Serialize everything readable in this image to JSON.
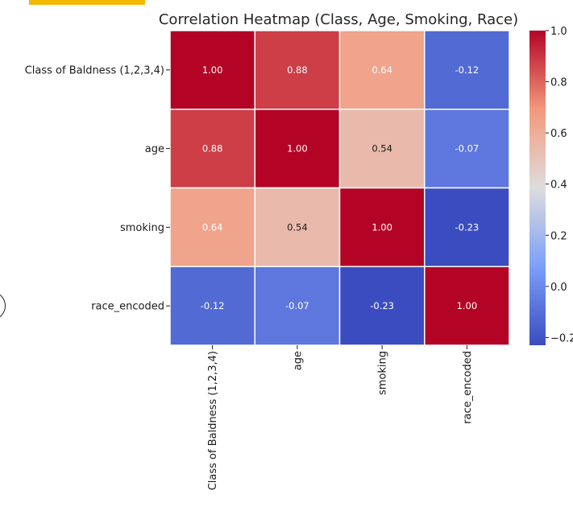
{
  "chart_data": {
    "type": "heatmap",
    "title": "Correlation Heatmap (Class, Age, Smoking, Race)",
    "row_labels": [
      "Class of Baldness (1,2,3,4)",
      "age",
      "smoking",
      "race_encoded"
    ],
    "col_labels": [
      "Class of Baldness (1,2,3,4)",
      "age",
      "smoking",
      "race_encoded"
    ],
    "values": [
      [
        1.0,
        0.88,
        0.64,
        -0.12
      ],
      [
        0.88,
        1.0,
        0.54,
        -0.07
      ],
      [
        0.64,
        0.54,
        1.0,
        -0.23
      ],
      [
        -0.12,
        -0.07,
        -0.23,
        1.0
      ]
    ],
    "value_format": "2 decimals",
    "colormap": "coolwarm",
    "color_range": [
      -0.23,
      1.0
    ],
    "colorbar": {
      "ticks": [
        1.0,
        0.8,
        0.6,
        0.4,
        0.2,
        0.0,
        -0.2
      ],
      "tick_labels": [
        "1.0",
        "0.8",
        "0.6",
        "0.4",
        "0.2",
        "0.0",
        "−0.2"
      ]
    },
    "grid": false
  }
}
